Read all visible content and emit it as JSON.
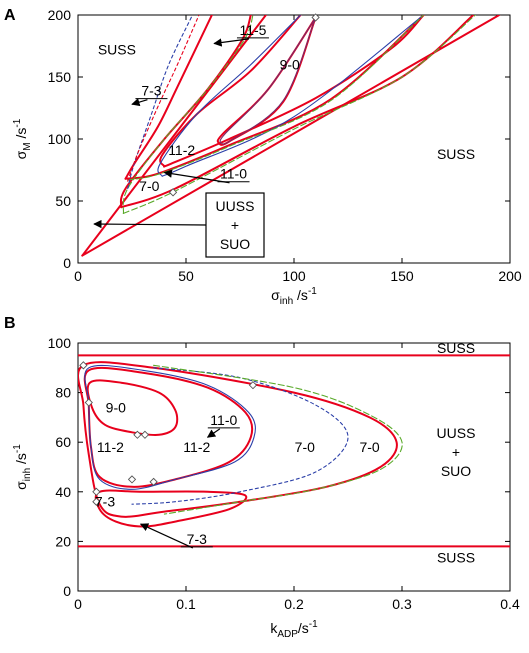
{
  "colors": {
    "red": "#e8001c",
    "blue": "#2b3fa8",
    "green": "#5aaa2a",
    "purple": "#7a2a6a",
    "orange": "#d8a040"
  },
  "chart_data": [
    {
      "panel": "A",
      "type": "line",
      "xlabel": {
        "base": "σ",
        "sub": "inh",
        "unit": " /s",
        "sup": "-1"
      },
      "ylabel": {
        "base": "σ",
        "sub": "M",
        "unit": " /s",
        "sup": "-1"
      },
      "xlim": [
        0,
        200
      ],
      "ylim": [
        0,
        200
      ],
      "xticks": [
        0,
        50,
        100,
        150,
        200
      ],
      "yticks": [
        0,
        50,
        100,
        150,
        200
      ],
      "regions": [
        {
          "text": "SUSS",
          "x": 18,
          "y": 172
        },
        {
          "text": "SUSS",
          "x": 175,
          "y": 88
        }
      ],
      "boxed_label": {
        "lines": [
          "UUSS",
          "+",
          "SUO"
        ]
      },
      "labels": [
        {
          "text": "9-0",
          "x": 98,
          "y": 160
        },
        {
          "text": "11-2",
          "x": 48,
          "y": 91
        },
        {
          "text": "7-0",
          "x": 33,
          "y": 62
        }
      ],
      "arrow_labels": [
        {
          "text": "11-5",
          "tx": 81,
          "ty": 188,
          "ax": 63,
          "ay": 177
        },
        {
          "text": "7-3",
          "tx": 34,
          "ty": 139,
          "ax": 25,
          "ay": 128
        },
        {
          "text": "11-0",
          "tx": 72,
          "ty": 72,
          "ax": 40,
          "ay": 73
        }
      ],
      "markers": [
        {
          "x": 110,
          "y": 198
        },
        {
          "x": 44,
          "y": 57
        }
      ],
      "series": [
        {
          "style": "red-solid",
          "points": [
            [
              2,
              6
            ],
            [
              87,
              200
            ]
          ]
        },
        {
          "style": "red-solid",
          "points": [
            [
              2,
              6
            ],
            [
              195,
              200
            ]
          ]
        },
        {
          "style": "red-solid",
          "points": [
            [
              20,
              45
            ],
            [
              22,
              60
            ],
            [
              40,
              100
            ],
            [
              60,
              140
            ],
            [
              76,
              180
            ],
            [
              80,
              200
            ]
          ]
        },
        {
          "style": "red-solid",
          "points": [
            [
              20,
              45
            ],
            [
              45,
              60
            ],
            [
              100,
              110
            ],
            [
              150,
              150
            ],
            [
              183,
              200
            ]
          ]
        },
        {
          "style": "red-solid",
          "points": [
            [
              22,
              68
            ],
            [
              26,
              80
            ],
            [
              37,
              110
            ],
            [
              46,
              142
            ],
            [
              62,
              200
            ]
          ]
        },
        {
          "style": "red-solid",
          "points": [
            [
              22,
              68
            ],
            [
              37,
              72
            ],
            [
              70,
              95
            ],
            [
              117,
              132
            ],
            [
              160,
              200
            ]
          ]
        },
        {
          "style": "red-solid",
          "points": [
            [
              40,
              78
            ],
            [
              39,
              87
            ],
            [
              55,
              120
            ],
            [
              80,
              155
            ],
            [
              103,
              200
            ]
          ]
        },
        {
          "style": "red-solid",
          "points": [
            [
              40,
              78
            ],
            [
              43,
              80
            ],
            [
              70,
              100
            ],
            [
              110,
              133
            ],
            [
              145,
              173
            ],
            [
              160,
              200
            ]
          ]
        },
        {
          "style": "red-solid",
          "points": [
            [
              65,
              97
            ],
            [
              67,
              104
            ],
            [
              88,
              140
            ],
            [
              110,
              198
            ]
          ]
        },
        {
          "style": "red-solid",
          "points": [
            [
              65,
              97
            ],
            [
              70,
              98
            ],
            [
              95,
              130
            ],
            [
              110,
              198
            ]
          ]
        },
        {
          "style": "blue-solid",
          "points": [
            [
              39,
              70
            ],
            [
              38,
              80
            ],
            [
              55,
              120
            ],
            [
              80,
              160
            ],
            [
              103,
              200
            ]
          ]
        },
        {
          "style": "blue-solid",
          "points": [
            [
              39,
              70
            ],
            [
              50,
              78
            ],
            [
              100,
              118
            ],
            [
              160,
              200
            ]
          ]
        },
        {
          "style": "purple-solid",
          "points": [
            [
              66,
              97
            ],
            [
              68,
              104
            ],
            [
              88,
              140
            ],
            [
              110,
              198
            ]
          ]
        },
        {
          "style": "purple-solid",
          "points": [
            [
              66,
              97
            ],
            [
              71,
              99
            ],
            [
              95,
              131
            ],
            [
              110,
              198
            ]
          ]
        },
        {
          "style": "green-dashed",
          "points": [
            [
              21,
              40
            ],
            [
              23,
              60
            ],
            [
              40,
              100
            ],
            [
              60,
              140
            ],
            [
              77,
              180
            ],
            [
              81,
              200
            ]
          ]
        },
        {
          "style": "green-dashed",
          "points": [
            [
              21,
              40
            ],
            [
              45,
              58
            ],
            [
              100,
              108
            ],
            [
              150,
              150
            ],
            [
              184,
              200
            ]
          ]
        },
        {
          "style": "green-dashed",
          "points": [
            [
              23,
              67
            ],
            [
              38,
              72
            ],
            [
              70,
              94
            ],
            [
              117,
              131
            ],
            [
              160,
              200
            ]
          ]
        },
        {
          "style": "blue-dashed",
          "points": [
            [
              23,
              60
            ],
            [
              26,
              80
            ],
            [
              34,
              120
            ],
            [
              42,
              160
            ],
            [
              53,
              200
            ]
          ]
        },
        {
          "style": "red-dashed",
          "points": [
            [
              23,
              66
            ],
            [
              28,
              90
            ],
            [
              38,
              130
            ],
            [
              46,
              160
            ],
            [
              56,
              200
            ]
          ]
        }
      ]
    },
    {
      "panel": "B",
      "type": "line",
      "xlabel": {
        "base": "k",
        "sub": "ADP",
        "unit": "/s",
        "sup": "-1"
      },
      "ylabel": {
        "base": "σ",
        "sub": "inh",
        "unit": " /s",
        "sup": "-1"
      },
      "xlim": [
        0,
        0.4
      ],
      "ylim": [
        0,
        100
      ],
      "xticks": [
        0,
        0.1,
        0.2,
        0.3,
        0.4
      ],
      "yticks": [
        0,
        20,
        40,
        60,
        80,
        100
      ],
      "xtick_labels": [
        "0",
        "0.1",
        "0.2",
        "0.3",
        "0.4"
      ],
      "regions": [
        {
          "text": "SUSS",
          "x": 0.35,
          "y": 98
        },
        {
          "text": "SUSS",
          "x": 0.35,
          "y": 13.5
        }
      ],
      "stacked_label": {
        "lines": [
          "UUSS",
          "+",
          "SUO"
        ],
        "x": 0.35,
        "y": 56
      },
      "labels": [
        {
          "text": "9-0",
          "x": 0.035,
          "y": 74
        },
        {
          "text": "11-2",
          "x": 0.03,
          "y": 58
        },
        {
          "text": "11-2",
          "x": 0.11,
          "y": 58
        },
        {
          "text": "7-0",
          "x": 0.21,
          "y": 58
        },
        {
          "text": "7-0",
          "x": 0.27,
          "y": 58
        },
        {
          "text": "7-3",
          "x": 0.025,
          "y": 36
        }
      ],
      "arrow_labels": [
        {
          "text": "11-0",
          "tx": 0.135,
          "ty": 69,
          "ax": 0.12,
          "ay": 62
        },
        {
          "text": "7-3",
          "tx": 0.11,
          "ty": 21,
          "ax": 0.058,
          "ay": 27
        }
      ],
      "markers": [
        {
          "x": 0.005,
          "y": 91
        },
        {
          "x": 0.01,
          "y": 76
        },
        {
          "x": 0.055,
          "y": 63
        },
        {
          "x": 0.062,
          "y": 63
        },
        {
          "x": 0.07,
          "y": 44
        },
        {
          "x": 0.05,
          "y": 45
        },
        {
          "x": 0.017,
          "y": 40
        },
        {
          "x": 0.017,
          "y": 36
        },
        {
          "x": 0.162,
          "y": 83
        }
      ],
      "series": [
        {
          "style": "red-solid",
          "points": [
            [
              0,
              95
            ],
            [
              0.4,
              95
            ]
          ]
        },
        {
          "style": "red-solid",
          "points": [
            [
              0,
              18
            ],
            [
              0.4,
              18
            ]
          ]
        },
        {
          "style": "red-solid",
          "closed": true,
          "points": [
            [
              0.005,
              91
            ],
            [
              0.07,
              90
            ],
            [
              0.2,
              80
            ],
            [
              0.27,
              70
            ],
            [
              0.295,
              60
            ],
            [
              0.28,
              50
            ],
            [
              0.23,
              42
            ],
            [
              0.15,
              36
            ],
            [
              0.08,
              32
            ],
            [
              0.04,
              30
            ],
            [
              0.02,
              35
            ],
            [
              0.01,
              55
            ],
            [
              0.005,
              75
            ]
          ]
        },
        {
          "style": "red-solid",
          "closed": true,
          "points": [
            [
              0.01,
              89
            ],
            [
              0.06,
              88
            ],
            [
              0.12,
              82
            ],
            [
              0.155,
              72
            ],
            [
              0.16,
              62
            ],
            [
              0.14,
              52
            ],
            [
              0.09,
              45
            ],
            [
              0.05,
              42
            ],
            [
              0.02,
              46
            ],
            [
              0.012,
              58
            ],
            [
              0.01,
              75
            ]
          ]
        },
        {
          "style": "red-solid",
          "closed": true,
          "points": [
            [
              0.011,
              84
            ],
            [
              0.04,
              84
            ],
            [
              0.075,
              80
            ],
            [
              0.09,
              73
            ],
            [
              0.09,
              66
            ],
            [
              0.075,
              63
            ],
            [
              0.05,
              64
            ],
            [
              0.025,
              67
            ],
            [
              0.013,
              74
            ]
          ]
        },
        {
          "style": "red-solid",
          "closed": true,
          "points": [
            [
              0.02,
              40
            ],
            [
              0.06,
              40
            ],
            [
              0.12,
              40
            ],
            [
              0.155,
              38.5
            ],
            [
              0.14,
              33
            ],
            [
              0.09,
              28
            ],
            [
              0.06,
              26
            ],
            [
              0.035,
              28
            ],
            [
              0.02,
              33
            ]
          ]
        },
        {
          "style": "blue-solid",
          "closed": true,
          "points": [
            [
              0.01,
              90
            ],
            [
              0.06,
              89
            ],
            [
              0.12,
              83
            ],
            [
              0.158,
              72
            ],
            [
              0.163,
              62
            ],
            [
              0.145,
              52
            ],
            [
              0.09,
              45
            ],
            [
              0.05,
              41
            ],
            [
              0.02,
              45
            ],
            [
              0.012,
              58
            ],
            [
              0.01,
              76
            ]
          ]
        },
        {
          "style": "blue-dashed",
          "points": [
            [
              0.07,
              90
            ],
            [
              0.15,
              86
            ],
            [
              0.22,
              75
            ],
            [
              0.25,
              62
            ],
            [
              0.22,
              48
            ],
            [
              0.15,
              40
            ],
            [
              0.09,
              36
            ],
            [
              0.05,
              35
            ]
          ]
        },
        {
          "style": "green-dashed",
          "points": [
            [
              0.07,
              91
            ],
            [
              0.2,
              82
            ],
            [
              0.27,
              71
            ],
            [
              0.3,
              60
            ],
            [
              0.28,
              49
            ],
            [
              0.22,
              41
            ],
            [
              0.15,
              36
            ],
            [
              0.08,
              31
            ]
          ]
        }
      ]
    }
  ]
}
